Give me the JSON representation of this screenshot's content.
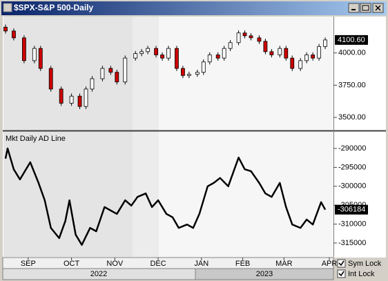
{
  "window": {
    "title": "$SPX-S&P 500-Daily"
  },
  "time_axis": {
    "xlim": [
      -1,
      159
    ],
    "xticks": [
      {
        "value": 11,
        "label": "SEP"
      },
      {
        "value": 32,
        "label": "OCT"
      },
      {
        "value": 53,
        "label": "NOV"
      },
      {
        "value": 74,
        "label": "DEC"
      },
      {
        "value": 95,
        "label": "JAN"
      },
      {
        "value": 115,
        "label": "FEB"
      },
      {
        "value": 135,
        "label": "MAR"
      },
      {
        "value": 157,
        "label": "APR"
      }
    ],
    "years": [
      "2022",
      "2023"
    ]
  },
  "chart_data": [
    {
      "type": "candlestick",
      "up_color": "#ffffff",
      "down_color": "#cc0000",
      "x": [
        0,
        4,
        9,
        14,
        17,
        22,
        27,
        32,
        36,
        39,
        42,
        47,
        51,
        54,
        58,
        63,
        66,
        69,
        73,
        76,
        79,
        83,
        86,
        89,
        93,
        96,
        99,
        103,
        106,
        109,
        113,
        116,
        119,
        123,
        126,
        129,
        133,
        136,
        139,
        143,
        146,
        149,
        152,
        155
      ],
      "open": [
        4200,
        4170,
        4117,
        3940,
        4035,
        3880,
        3720,
        3610,
        3665,
        3585,
        3720,
        3800,
        3880,
        3850,
        3775,
        3960,
        3995,
        4010,
        4035,
        3985,
        3960,
        4035,
        3880,
        3825,
        3835,
        3850,
        3930,
        3985,
        3960,
        4035,
        4080,
        4155,
        4133,
        4117,
        4090,
        4010,
        3985,
        4035,
        3960,
        3880,
        3940,
        3985,
        3960,
        4050
      ],
      "high": [
        4220,
        4190,
        4137,
        4055,
        4055,
        3900,
        3740,
        3685,
        3685,
        3740,
        3820,
        3900,
        3900,
        3870,
        3980,
        4015,
        4030,
        4055,
        4055,
        4005,
        4055,
        4055,
        3900,
        3855,
        3870,
        3950,
        4005,
        4005,
        4055,
        4100,
        4175,
        4175,
        4153,
        4137,
        4110,
        4030,
        4055,
        4055,
        3980,
        3960,
        4005,
        4005,
        4070,
        4120
      ],
      "low": [
        4150,
        4097,
        3920,
        3920,
        3860,
        3700,
        3590,
        3590,
        3565,
        3565,
        3700,
        3780,
        3830,
        3755,
        3755,
        3940,
        3975,
        3990,
        3965,
        3940,
        3940,
        3860,
        3805,
        3805,
        3815,
        3830,
        3910,
        3940,
        3940,
        4015,
        4060,
        4113,
        4097,
        4070,
        3990,
        3965,
        3965,
        3940,
        3860,
        3860,
        3920,
        3940,
        3940,
        4030
      ],
      "close": [
        4170,
        4117,
        3940,
        4035,
        3880,
        3720,
        3610,
        3665,
        3585,
        3720,
        3800,
        3880,
        3850,
        3775,
        3960,
        3995,
        4010,
        4035,
        3985,
        3960,
        4035,
        3880,
        3825,
        3835,
        3850,
        3930,
        3985,
        3960,
        4035,
        4080,
        4155,
        4133,
        4117,
        4090,
        4010,
        3985,
        4035,
        3960,
        3880,
        3940,
        3985,
        3960,
        4050,
        4100.6
      ],
      "ylim": [
        3404,
        4282
      ],
      "yticks": [
        {
          "value": 3500,
          "label": "3500.00"
        },
        {
          "value": 3750,
          "label": "3750.00"
        },
        {
          "value": 4000,
          "label": "4000.00"
        }
      ],
      "last": {
        "value": 4100.6,
        "label": "4100.60"
      }
    },
    {
      "type": "line",
      "title": "Mkt Daily AD Line",
      "color": "#000000",
      "x": [
        0,
        1,
        4,
        7,
        12,
        16,
        19,
        22,
        26,
        29,
        31,
        34,
        37,
        41,
        44,
        48,
        51,
        54,
        58,
        61,
        64,
        68,
        71,
        74,
        78,
        81,
        84,
        88,
        91,
        94,
        98,
        101,
        104,
        108,
        113,
        116,
        119,
        123,
        126,
        129,
        133,
        136,
        139,
        143,
        146,
        149,
        153,
        155
      ],
      "values": [
        -292700,
        -290000,
        -295500,
        -298200,
        -293650,
        -299100,
        -303700,
        -311000,
        -313700,
        -309200,
        -303700,
        -312800,
        -315500,
        -311000,
        -311900,
        -305500,
        -306400,
        -307300,
        -303700,
        -305100,
        -302800,
        -301900,
        -305500,
        -303700,
        -307300,
        -308200,
        -311000,
        -310100,
        -311000,
        -307300,
        -300000,
        -299100,
        -297800,
        -300000,
        -292400,
        -295500,
        -296000,
        -299100,
        -301900,
        -302800,
        -299100,
        -305500,
        -310100,
        -311000,
        -308800,
        -310100,
        -304200,
        -306184
      ],
      "ylim": [
        -318650,
        -285800
      ],
      "yticks": [
        -315000,
        -310000,
        -305000,
        -300000,
        -295000,
        -290000
      ],
      "last": -306184
    }
  ],
  "controls": {
    "sym_lock": "Sym Lock",
    "int_lock": "Int Lock"
  }
}
